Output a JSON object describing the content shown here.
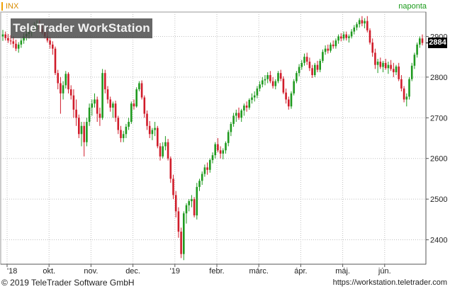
{
  "header": {
    "symbol": "INX",
    "period": "naponta",
    "watermark": "TeleTrader WorkStation",
    "last_value": "2884"
  },
  "footer": {
    "copyright": "© 2019 TeleTrader Software GmbH",
    "website": "https://workstation.teletrader.com"
  },
  "colors": {
    "up": "#1f9a1f",
    "down": "#d01c2a",
    "grid": "#c0c0c0",
    "symbol": "#d98c00",
    "period": "#1a9a1a"
  },
  "chart_data": {
    "type": "candlestick",
    "title": "",
    "ylim": [
      2340,
      2960
    ],
    "y_ticks": [
      2400,
      2500,
      2600,
      2700,
      2800,
      2900
    ],
    "x_tick_labels": [
      "'18",
      "okt.",
      "nov.",
      "dec.",
      "'19",
      "febr.",
      "márc.",
      "ápr.",
      "máj.",
      "jún."
    ],
    "grid": true,
    "candles": [
      {
        "o": 2900,
        "h": 2916,
        "l": 2889,
        "c": 2905
      },
      {
        "o": 2905,
        "h": 2912,
        "l": 2890,
        "c": 2896
      },
      {
        "o": 2896,
        "h": 2906,
        "l": 2884,
        "c": 2890
      },
      {
        "o": 2890,
        "h": 2903,
        "l": 2880,
        "c": 2888
      },
      {
        "o": 2888,
        "h": 2900,
        "l": 2872,
        "c": 2882
      },
      {
        "o": 2882,
        "h": 2892,
        "l": 2864,
        "c": 2870
      },
      {
        "o": 2870,
        "h": 2886,
        "l": 2860,
        "c": 2880
      },
      {
        "o": 2880,
        "h": 2895,
        "l": 2872,
        "c": 2890
      },
      {
        "o": 2890,
        "h": 2908,
        "l": 2882,
        "c": 2900
      },
      {
        "o": 2900,
        "h": 2915,
        "l": 2890,
        "c": 2906
      },
      {
        "o": 2906,
        "h": 2918,
        "l": 2895,
        "c": 2912
      },
      {
        "o": 2912,
        "h": 2924,
        "l": 2900,
        "c": 2918
      },
      {
        "o": 2918,
        "h": 2935,
        "l": 2910,
        "c": 2926
      },
      {
        "o": 2926,
        "h": 2940,
        "l": 2916,
        "c": 2930
      },
      {
        "o": 2930,
        "h": 2940,
        "l": 2912,
        "c": 2918
      },
      {
        "o": 2918,
        "h": 2928,
        "l": 2905,
        "c": 2910
      },
      {
        "o": 2910,
        "h": 2922,
        "l": 2895,
        "c": 2900
      },
      {
        "o": 2900,
        "h": 2912,
        "l": 2885,
        "c": 2890
      },
      {
        "o": 2890,
        "h": 2898,
        "l": 2870,
        "c": 2880
      },
      {
        "o": 2880,
        "h": 2888,
        "l": 2855,
        "c": 2870
      },
      {
        "o": 2870,
        "h": 2875,
        "l": 2805,
        "c": 2810
      },
      {
        "o": 2810,
        "h": 2818,
        "l": 2770,
        "c": 2785
      },
      {
        "o": 2785,
        "h": 2800,
        "l": 2710,
        "c": 2760
      },
      {
        "o": 2760,
        "h": 2790,
        "l": 2745,
        "c": 2780
      },
      {
        "o": 2780,
        "h": 2815,
        "l": 2772,
        "c": 2808
      },
      {
        "o": 2808,
        "h": 2812,
        "l": 2760,
        "c": 2770
      },
      {
        "o": 2770,
        "h": 2780,
        "l": 2745,
        "c": 2755
      },
      {
        "o": 2755,
        "h": 2770,
        "l": 2700,
        "c": 2720
      },
      {
        "o": 2720,
        "h": 2745,
        "l": 2680,
        "c": 2700
      },
      {
        "o": 2700,
        "h": 2708,
        "l": 2650,
        "c": 2660
      },
      {
        "o": 2660,
        "h": 2690,
        "l": 2630,
        "c": 2680
      },
      {
        "o": 2680,
        "h": 2690,
        "l": 2605,
        "c": 2640
      },
      {
        "o": 2640,
        "h": 2700,
        "l": 2630,
        "c": 2690
      },
      {
        "o": 2690,
        "h": 2735,
        "l": 2680,
        "c": 2725
      },
      {
        "o": 2725,
        "h": 2745,
        "l": 2705,
        "c": 2735
      },
      {
        "o": 2735,
        "h": 2760,
        "l": 2725,
        "c": 2745
      },
      {
        "o": 2745,
        "h": 2752,
        "l": 2690,
        "c": 2710
      },
      {
        "o": 2710,
        "h": 2725,
        "l": 2680,
        "c": 2700
      },
      {
        "o": 2700,
        "h": 2820,
        "l": 2695,
        "c": 2810
      },
      {
        "o": 2810,
        "h": 2818,
        "l": 2760,
        "c": 2770
      },
      {
        "o": 2770,
        "h": 2778,
        "l": 2735,
        "c": 2745
      },
      {
        "o": 2745,
        "h": 2752,
        "l": 2715,
        "c": 2725
      },
      {
        "o": 2725,
        "h": 2740,
        "l": 2700,
        "c": 2735
      },
      {
        "o": 2735,
        "h": 2742,
        "l": 2690,
        "c": 2700
      },
      {
        "o": 2700,
        "h": 2705,
        "l": 2660,
        "c": 2670
      },
      {
        "o": 2670,
        "h": 2680,
        "l": 2640,
        "c": 2650
      },
      {
        "o": 2650,
        "h": 2668,
        "l": 2640,
        "c": 2660
      },
      {
        "o": 2660,
        "h": 2685,
        "l": 2650,
        "c": 2678
      },
      {
        "o": 2678,
        "h": 2700,
        "l": 2670,
        "c": 2690
      },
      {
        "o": 2690,
        "h": 2740,
        "l": 2685,
        "c": 2735
      },
      {
        "o": 2735,
        "h": 2745,
        "l": 2720,
        "c": 2728
      },
      {
        "o": 2728,
        "h": 2775,
        "l": 2725,
        "c": 2770
      },
      {
        "o": 2770,
        "h": 2790,
        "l": 2765,
        "c": 2785
      },
      {
        "o": 2785,
        "h": 2792,
        "l": 2745,
        "c": 2750
      },
      {
        "o": 2750,
        "h": 2755,
        "l": 2700,
        "c": 2710
      },
      {
        "o": 2710,
        "h": 2718,
        "l": 2670,
        "c": 2680
      },
      {
        "o": 2680,
        "h": 2692,
        "l": 2650,
        "c": 2660
      },
      {
        "o": 2660,
        "h": 2675,
        "l": 2645,
        "c": 2670
      },
      {
        "o": 2670,
        "h": 2690,
        "l": 2655,
        "c": 2675
      },
      {
        "o": 2675,
        "h": 2680,
        "l": 2625,
        "c": 2630
      },
      {
        "o": 2630,
        "h": 2638,
        "l": 2595,
        "c": 2605
      },
      {
        "o": 2605,
        "h": 2640,
        "l": 2600,
        "c": 2630
      },
      {
        "o": 2630,
        "h": 2655,
        "l": 2620,
        "c": 2640
      },
      {
        "o": 2640,
        "h": 2648,
        "l": 2595,
        "c": 2600
      },
      {
        "o": 2600,
        "h": 2605,
        "l": 2540,
        "c": 2550
      },
      {
        "o": 2550,
        "h": 2560,
        "l": 2500,
        "c": 2510
      },
      {
        "o": 2510,
        "h": 2520,
        "l": 2455,
        "c": 2470
      },
      {
        "o": 2470,
        "h": 2480,
        "l": 2405,
        "c": 2420
      },
      {
        "o": 2420,
        "h": 2430,
        "l": 2355,
        "c": 2365
      },
      {
        "o": 2365,
        "h": 2470,
        "l": 2350,
        "c": 2465
      },
      {
        "o": 2465,
        "h": 2490,
        "l": 2440,
        "c": 2485
      },
      {
        "o": 2485,
        "h": 2500,
        "l": 2470,
        "c": 2495
      },
      {
        "o": 2495,
        "h": 2510,
        "l": 2480,
        "c": 2500
      },
      {
        "o": 2500,
        "h": 2505,
        "l": 2455,
        "c": 2460
      },
      {
        "o": 2460,
        "h": 2540,
        "l": 2450,
        "c": 2530
      },
      {
        "o": 2530,
        "h": 2550,
        "l": 2520,
        "c": 2545
      },
      {
        "o": 2545,
        "h": 2568,
        "l": 2535,
        "c": 2562
      },
      {
        "o": 2562,
        "h": 2585,
        "l": 2555,
        "c": 2578
      },
      {
        "o": 2578,
        "h": 2590,
        "l": 2560,
        "c": 2572
      },
      {
        "o": 2572,
        "h": 2600,
        "l": 2565,
        "c": 2596
      },
      {
        "o": 2596,
        "h": 2615,
        "l": 2588,
        "c": 2608
      },
      {
        "o": 2608,
        "h": 2640,
        "l": 2600,
        "c": 2635
      },
      {
        "o": 2635,
        "h": 2650,
        "l": 2615,
        "c": 2620
      },
      {
        "o": 2620,
        "h": 2630,
        "l": 2600,
        "c": 2612
      },
      {
        "o": 2612,
        "h": 2625,
        "l": 2598,
        "c": 2620
      },
      {
        "o": 2620,
        "h": 2642,
        "l": 2612,
        "c": 2638
      },
      {
        "o": 2638,
        "h": 2670,
        "l": 2630,
        "c": 2665
      },
      {
        "o": 2665,
        "h": 2690,
        "l": 2655,
        "c": 2685
      },
      {
        "o": 2685,
        "h": 2712,
        "l": 2678,
        "c": 2705
      },
      {
        "o": 2705,
        "h": 2720,
        "l": 2690,
        "c": 2712
      },
      {
        "o": 2712,
        "h": 2725,
        "l": 2695,
        "c": 2700
      },
      {
        "o": 2700,
        "h": 2722,
        "l": 2690,
        "c": 2718
      },
      {
        "o": 2718,
        "h": 2735,
        "l": 2705,
        "c": 2730
      },
      {
        "o": 2730,
        "h": 2740,
        "l": 2715,
        "c": 2725
      },
      {
        "o": 2725,
        "h": 2748,
        "l": 2720,
        "c": 2744
      },
      {
        "o": 2744,
        "h": 2760,
        "l": 2735,
        "c": 2750
      },
      {
        "o": 2750,
        "h": 2765,
        "l": 2740,
        "c": 2755
      },
      {
        "o": 2755,
        "h": 2778,
        "l": 2748,
        "c": 2772
      },
      {
        "o": 2772,
        "h": 2790,
        "l": 2765,
        "c": 2782
      },
      {
        "o": 2782,
        "h": 2800,
        "l": 2775,
        "c": 2792
      },
      {
        "o": 2792,
        "h": 2805,
        "l": 2780,
        "c": 2795
      },
      {
        "o": 2795,
        "h": 2812,
        "l": 2785,
        "c": 2805
      },
      {
        "o": 2805,
        "h": 2815,
        "l": 2785,
        "c": 2790
      },
      {
        "o": 2790,
        "h": 2800,
        "l": 2772,
        "c": 2778
      },
      {
        "o": 2778,
        "h": 2795,
        "l": 2770,
        "c": 2790
      },
      {
        "o": 2790,
        "h": 2815,
        "l": 2785,
        "c": 2810
      },
      {
        "o": 2810,
        "h": 2818,
        "l": 2790,
        "c": 2796
      },
      {
        "o": 2796,
        "h": 2802,
        "l": 2758,
        "c": 2762
      },
      {
        "o": 2762,
        "h": 2772,
        "l": 2735,
        "c": 2745
      },
      {
        "o": 2745,
        "h": 2752,
        "l": 2720,
        "c": 2728
      },
      {
        "o": 2728,
        "h": 2765,
        "l": 2722,
        "c": 2760
      },
      {
        "o": 2760,
        "h": 2795,
        "l": 2755,
        "c": 2790
      },
      {
        "o": 2790,
        "h": 2815,
        "l": 2785,
        "c": 2810
      },
      {
        "o": 2810,
        "h": 2832,
        "l": 2802,
        "c": 2825
      },
      {
        "o": 2825,
        "h": 2842,
        "l": 2818,
        "c": 2835
      },
      {
        "o": 2835,
        "h": 2858,
        "l": 2828,
        "c": 2850
      },
      {
        "o": 2850,
        "h": 2860,
        "l": 2830,
        "c": 2838
      },
      {
        "o": 2838,
        "h": 2848,
        "l": 2815,
        "c": 2822
      },
      {
        "o": 2822,
        "h": 2830,
        "l": 2798,
        "c": 2805
      },
      {
        "o": 2805,
        "h": 2835,
        "l": 2800,
        "c": 2830
      },
      {
        "o": 2830,
        "h": 2840,
        "l": 2812,
        "c": 2818
      },
      {
        "o": 2818,
        "h": 2845,
        "l": 2812,
        "c": 2840
      },
      {
        "o": 2840,
        "h": 2868,
        "l": 2835,
        "c": 2862
      },
      {
        "o": 2862,
        "h": 2878,
        "l": 2855,
        "c": 2870
      },
      {
        "o": 2870,
        "h": 2880,
        "l": 2858,
        "c": 2865
      },
      {
        "o": 2865,
        "h": 2885,
        "l": 2860,
        "c": 2880
      },
      {
        "o": 2880,
        "h": 2890,
        "l": 2870,
        "c": 2876
      },
      {
        "o": 2876,
        "h": 2895,
        "l": 2870,
        "c": 2890
      },
      {
        "o": 2890,
        "h": 2905,
        "l": 2882,
        "c": 2900
      },
      {
        "o": 2900,
        "h": 2908,
        "l": 2888,
        "c": 2895
      },
      {
        "o": 2895,
        "h": 2912,
        "l": 2890,
        "c": 2905
      },
      {
        "o": 2905,
        "h": 2912,
        "l": 2890,
        "c": 2896
      },
      {
        "o": 2896,
        "h": 2905,
        "l": 2885,
        "c": 2900
      },
      {
        "o": 2900,
        "h": 2918,
        "l": 2895,
        "c": 2912
      },
      {
        "o": 2912,
        "h": 2928,
        "l": 2905,
        "c": 2922
      },
      {
        "o": 2922,
        "h": 2935,
        "l": 2915,
        "c": 2930
      },
      {
        "o": 2930,
        "h": 2945,
        "l": 2922,
        "c": 2940
      },
      {
        "o": 2940,
        "h": 2950,
        "l": 2925,
        "c": 2932
      },
      {
        "o": 2932,
        "h": 2945,
        "l": 2920,
        "c": 2938
      },
      {
        "o": 2938,
        "h": 2950,
        "l": 2910,
        "c": 2915
      },
      {
        "o": 2915,
        "h": 2920,
        "l": 2880,
        "c": 2885
      },
      {
        "o": 2885,
        "h": 2895,
        "l": 2850,
        "c": 2860
      },
      {
        "o": 2860,
        "h": 2870,
        "l": 2820,
        "c": 2830
      },
      {
        "o": 2830,
        "h": 2845,
        "l": 2810,
        "c": 2838
      },
      {
        "o": 2838,
        "h": 2848,
        "l": 2820,
        "c": 2825
      },
      {
        "o": 2825,
        "h": 2840,
        "l": 2812,
        "c": 2835
      },
      {
        "o": 2835,
        "h": 2845,
        "l": 2818,
        "c": 2822
      },
      {
        "o": 2822,
        "h": 2838,
        "l": 2808,
        "c": 2830
      },
      {
        "o": 2830,
        "h": 2842,
        "l": 2815,
        "c": 2820
      },
      {
        "o": 2820,
        "h": 2835,
        "l": 2800,
        "c": 2812
      },
      {
        "o": 2812,
        "h": 2830,
        "l": 2805,
        "c": 2826
      },
      {
        "o": 2826,
        "h": 2835,
        "l": 2790,
        "c": 2795
      },
      {
        "o": 2795,
        "h": 2805,
        "l": 2765,
        "c": 2772
      },
      {
        "o": 2772,
        "h": 2778,
        "l": 2738,
        "c": 2745
      },
      {
        "o": 2745,
        "h": 2760,
        "l": 2728,
        "c": 2752
      },
      {
        "o": 2752,
        "h": 2800,
        "l": 2745,
        "c": 2795
      },
      {
        "o": 2795,
        "h": 2835,
        "l": 2790,
        "c": 2828
      },
      {
        "o": 2828,
        "h": 2860,
        "l": 2820,
        "c": 2855
      },
      {
        "o": 2855,
        "h": 2885,
        "l": 2848,
        "c": 2880
      },
      {
        "o": 2880,
        "h": 2900,
        "l": 2872,
        "c": 2895
      },
      {
        "o": 2895,
        "h": 2905,
        "l": 2878,
        "c": 2884
      }
    ]
  }
}
